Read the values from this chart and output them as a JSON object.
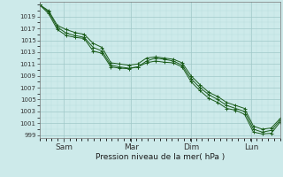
{
  "background_color": "#cdeaea",
  "plot_bg": "#cdeaea",
  "grid_color_major": "#a0c8c8",
  "grid_color_minor": "#b8dcdc",
  "line_color": "#1a5c1a",
  "title": "Pression niveau de la mer( hPa )",
  "ylim": [
    998.5,
    1021.5
  ],
  "yticks": [
    999,
    1001,
    1003,
    1005,
    1007,
    1009,
    1011,
    1013,
    1015,
    1017,
    1019
  ],
  "xtick_labels": [
    "Sam",
    "Mar",
    "Dim",
    "Lun"
  ],
  "xtick_positions": [
    0.1,
    0.38,
    0.63,
    0.88
  ],
  "series1": [
    1021.0,
    1019.5,
    1016.8,
    1015.8,
    1015.5,
    1015.3,
    1013.2,
    1012.8,
    1010.5,
    1010.3,
    1010.2,
    1010.5,
    1011.2,
    1011.5,
    1011.3,
    1011.2,
    1010.5,
    1008.0,
    1006.5,
    1005.2,
    1004.5,
    1003.5,
    1003.2,
    1002.5,
    999.5,
    999.2,
    999.3,
    1001.2
  ],
  "series2": [
    1021.0,
    1019.8,
    1017.2,
    1016.2,
    1015.8,
    1015.5,
    1013.8,
    1013.2,
    1010.8,
    1010.5,
    1010.3,
    1010.5,
    1011.5,
    1012.0,
    1011.8,
    1011.5,
    1010.8,
    1008.5,
    1007.0,
    1005.8,
    1005.0,
    1004.0,
    1003.5,
    1003.0,
    1000.0,
    999.5,
    999.8,
    1001.5
  ],
  "series3": [
    1021.0,
    1020.0,
    1017.5,
    1016.8,
    1016.3,
    1016.0,
    1014.5,
    1013.8,
    1011.2,
    1011.0,
    1010.8,
    1011.0,
    1012.0,
    1012.2,
    1012.0,
    1011.8,
    1011.2,
    1009.0,
    1007.5,
    1006.2,
    1005.5,
    1004.5,
    1004.0,
    1003.5,
    1000.5,
    1000.0,
    1000.2,
    1001.8
  ]
}
